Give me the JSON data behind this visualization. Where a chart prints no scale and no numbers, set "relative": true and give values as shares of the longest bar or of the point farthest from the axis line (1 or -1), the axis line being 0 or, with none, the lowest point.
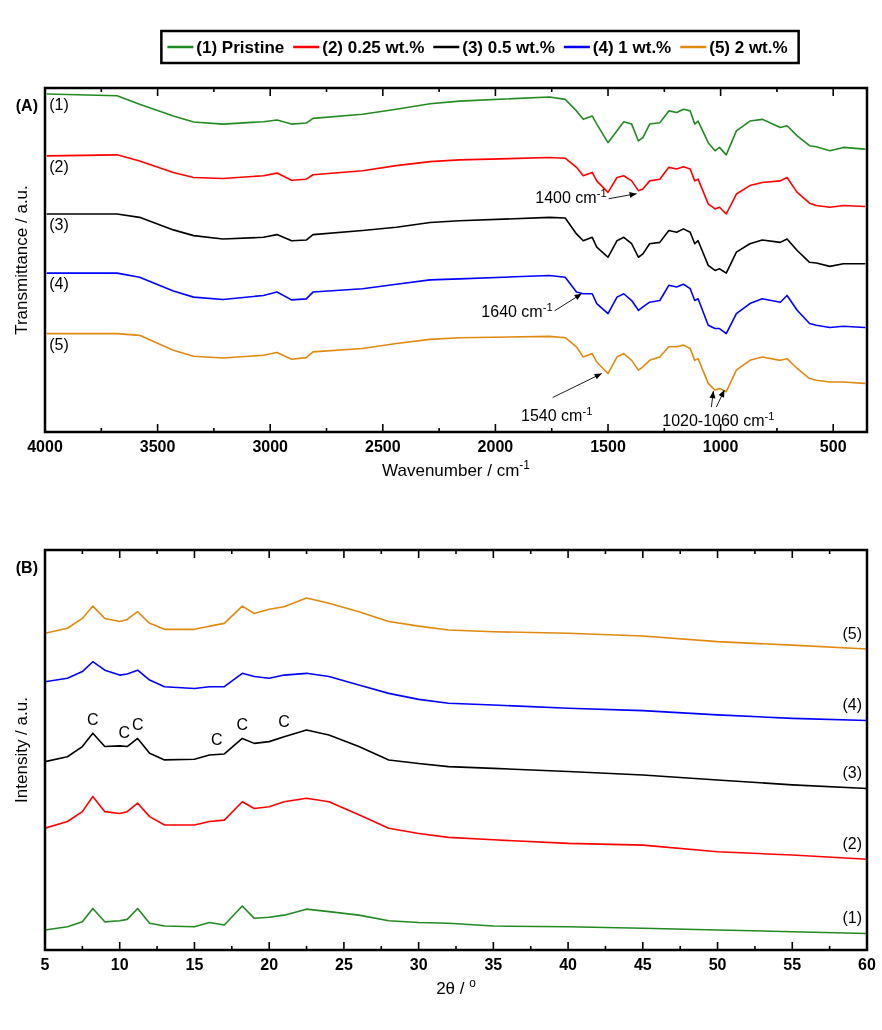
{
  "chart_data": [
    {
      "type": "line",
      "relative": true,
      "title": "(A)",
      "xlabel": "Wavenumber / cm$^{-1}$",
      "ylabel": "Transmittance / a.u.",
      "legend": "top",
      "tick_labels": "x",
      "xlim": [
        4000,
        350
      ],
      "xticks": [
        4000,
        {
          "value": 3750,
          "label": null
        },
        3500,
        {
          "value": 3250,
          "label": null
        },
        3000,
        {
          "value": 2750,
          "label": null
        },
        2500,
        {
          "value": 2250,
          "label": null
        },
        2000,
        {
          "value": 1750,
          "label": null
        },
        1500,
        {
          "value": 1250,
          "label": null
        },
        1000,
        {
          "value": 750,
          "label": null
        },
        500
      ],
      "x": [
        3990,
        3680,
        3580,
        3430,
        3340,
        3210,
        3030,
        2970,
        2905,
        2840,
        2810,
        2590,
        2440,
        2290,
        2160,
        1760,
        1690,
        1640,
        1610,
        1570,
        1550,
        1500,
        1460,
        1430,
        1395,
        1365,
        1345,
        1315,
        1270,
        1230,
        1195,
        1165,
        1135,
        1115,
        1100,
        1055,
        1025,
        1005,
        975,
        930,
        870,
        815,
        735,
        705,
        660,
        605,
        575,
        515,
        455,
        360
      ],
      "series": [
        {
          "name": "(1) Pristine",
          "color": "#218a21",
          "values": [
            1.0,
            0.995,
            0.97,
            0.935,
            0.917,
            0.911,
            0.918,
            0.923,
            0.911,
            0.914,
            0.928,
            0.94,
            0.955,
            0.971,
            0.979,
            0.991,
            0.984,
            0.95,
            0.925,
            0.935,
            0.911,
            0.856,
            0.891,
            0.918,
            0.911,
            0.861,
            0.871,
            0.911,
            0.915,
            0.95,
            0.945,
            0.955,
            0.95,
            0.911,
            0.92,
            0.856,
            0.832,
            0.842,
            0.82,
            0.891,
            0.92,
            0.925,
            0.901,
            0.906,
            0.876,
            0.847,
            0.844,
            0.832,
            0.842,
            0.837
          ]
        },
        {
          "name": "(2) 0.25 wt.%",
          "color": "#ff0000",
          "values": [
            0.817,
            0.82,
            0.802,
            0.768,
            0.753,
            0.75,
            0.758,
            0.766,
            0.745,
            0.748,
            0.761,
            0.773,
            0.788,
            0.8,
            0.805,
            0.812,
            0.81,
            0.783,
            0.758,
            0.768,
            0.743,
            0.709,
            0.753,
            0.758,
            0.743,
            0.714,
            0.719,
            0.743,
            0.748,
            0.783,
            0.778,
            0.785,
            0.778,
            0.743,
            0.748,
            0.675,
            0.66,
            0.665,
            0.645,
            0.704,
            0.729,
            0.738,
            0.743,
            0.753,
            0.709,
            0.677,
            0.67,
            0.665,
            0.67,
            0.667
          ]
        },
        {
          "name": "(3) 0.5 wt.%",
          "color": "#000000",
          "values": [
            0.645,
            0.645,
            0.635,
            0.598,
            0.581,
            0.571,
            0.576,
            0.584,
            0.566,
            0.568,
            0.584,
            0.596,
            0.606,
            0.62,
            0.625,
            0.635,
            0.633,
            0.586,
            0.566,
            0.576,
            0.547,
            0.517,
            0.566,
            0.576,
            0.557,
            0.517,
            0.527,
            0.557,
            0.561,
            0.596,
            0.591,
            0.601,
            0.591,
            0.557,
            0.566,
            0.493,
            0.478,
            0.483,
            0.47,
            0.532,
            0.557,
            0.568,
            0.561,
            0.571,
            0.537,
            0.502,
            0.5,
            0.49,
            0.498,
            0.498
          ]
        },
        {
          "name": "(4) 1 wt.%",
          "color": "#0000ff",
          "values": [
            0.47,
            0.47,
            0.458,
            0.417,
            0.399,
            0.392,
            0.404,
            0.414,
            0.391,
            0.394,
            0.414,
            0.424,
            0.437,
            0.45,
            0.453,
            0.463,
            0.458,
            0.414,
            0.409,
            0.409,
            0.38,
            0.35,
            0.399,
            0.409,
            0.389,
            0.36,
            0.37,
            0.384,
            0.389,
            0.434,
            0.429,
            0.437,
            0.424,
            0.389,
            0.394,
            0.316,
            0.306,
            0.306,
            0.291,
            0.35,
            0.38,
            0.394,
            0.384,
            0.404,
            0.36,
            0.321,
            0.316,
            0.309,
            0.313,
            0.309
          ]
        },
        {
          "name": "(5) 2 wt.%",
          "color": "#e0890f",
          "values": [
            0.291,
            0.291,
            0.286,
            0.242,
            0.224,
            0.219,
            0.227,
            0.235,
            0.215,
            0.22,
            0.237,
            0.247,
            0.262,
            0.274,
            0.279,
            0.283,
            0.279,
            0.252,
            0.222,
            0.232,
            0.207,
            0.173,
            0.222,
            0.232,
            0.212,
            0.183,
            0.193,
            0.212,
            0.222,
            0.252,
            0.252,
            0.257,
            0.247,
            0.212,
            0.217,
            0.144,
            0.124,
            0.129,
            0.119,
            0.183,
            0.212,
            0.222,
            0.212,
            0.217,
            0.188,
            0.158,
            0.153,
            0.148,
            0.148,
            0.144
          ]
        }
      ],
      "annotations": [
        {
          "text": "(1)",
          "x": 3990,
          "y": 1.0
        },
        {
          "text": "(2)",
          "x": 3990,
          "y": 0.817
        },
        {
          "text": "(3)",
          "x": 3990,
          "y": 0.645
        },
        {
          "text": "(4)",
          "x": 3990,
          "y": 0.47
        },
        {
          "text": "(5)",
          "x": 3990,
          "y": 0.291
        },
        {
          "text": "1400 cm$^{-1}$",
          "x": 1373,
          "y": 0.705
        },
        {
          "text": "1640 cm$^{-1}$",
          "x": 1617,
          "y": 0.409
        },
        {
          "text": "1540 cm$^{-1}$",
          "x": 1528,
          "y": 0.173
        },
        {
          "text": "1020-1060 cm$^{-1}$",
          "x": 1010,
          "y": 0.13
        }
      ]
    },
    {
      "type": "line",
      "relative": true,
      "title": "(B)",
      "xlabel": "2θ / $^{o}$",
      "ylabel": "Intensity / a.u.",
      "tick_labels": "x",
      "xlim": [
        5,
        60
      ],
      "xticks": [
        5,
        {
          "value": 7.5,
          "label": null
        },
        10,
        {
          "value": 12.5,
          "label": null
        },
        15,
        {
          "value": 17.5,
          "label": null
        },
        20,
        {
          "value": 22.5,
          "label": null
        },
        25,
        {
          "value": 27.5,
          "label": null
        },
        30,
        {
          "value": 32.5,
          "label": null
        },
        35,
        {
          "value": 37.5,
          "label": null
        },
        40,
        {
          "value": 42.5,
          "label": null
        },
        45,
        {
          "value": 47.5,
          "label": null
        },
        50,
        {
          "value": 52.5,
          "label": null
        },
        55,
        {
          "value": 57.5,
          "label": null
        },
        60
      ],
      "x": [
        5,
        6.5,
        7.5,
        8.2,
        9,
        10,
        10.5,
        11.2,
        12,
        13,
        15,
        16,
        17,
        18.2,
        19,
        20,
        21,
        22.5,
        24,
        26,
        28,
        30,
        32,
        35,
        40,
        45,
        50,
        55,
        60
      ],
      "series": [
        {
          "color": "#218a21",
          "values": [
            0.057,
            0.066,
            0.08,
            0.118,
            0.08,
            0.083,
            0.087,
            0.118,
            0.076,
            0.068,
            0.066,
            0.078,
            0.071,
            0.125,
            0.09,
            0.093,
            0.099,
            0.116,
            0.109,
            0.099,
            0.083,
            0.078,
            0.076,
            0.068,
            0.066,
            0.062,
            0.057,
            0.052,
            0.047
          ]
        },
        {
          "color": "#ff0000",
          "values": [
            0.346,
            0.365,
            0.393,
            0.436,
            0.393,
            0.388,
            0.393,
            0.417,
            0.379,
            0.355,
            0.355,
            0.365,
            0.369,
            0.421,
            0.402,
            0.407,
            0.421,
            0.431,
            0.421,
            0.384,
            0.346,
            0.331,
            0.32,
            0.313,
            0.303,
            0.298,
            0.279,
            0.27,
            0.258
          ]
        },
        {
          "color": "#000000",
          "values": [
            0.535,
            0.549,
            0.578,
            0.616,
            0.578,
            0.58,
            0.578,
            0.601,
            0.559,
            0.54,
            0.542,
            0.554,
            0.557,
            0.601,
            0.587,
            0.592,
            0.606,
            0.625,
            0.611,
            0.578,
            0.54,
            0.53,
            0.521,
            0.516,
            0.507,
            0.497,
            0.483,
            0.469,
            0.459
          ]
        },
        {
          "color": "#0000ff",
          "values": [
            0.762,
            0.772,
            0.791,
            0.819,
            0.795,
            0.781,
            0.784,
            0.795,
            0.767,
            0.748,
            0.743,
            0.748,
            0.748,
            0.786,
            0.777,
            0.772,
            0.781,
            0.786,
            0.777,
            0.753,
            0.729,
            0.712,
            0.701,
            0.696,
            0.687,
            0.68,
            0.668,
            0.658,
            0.652
          ]
        },
        {
          "color": "#e0890f",
          "values": [
            0.9,
            0.914,
            0.942,
            0.977,
            0.942,
            0.933,
            0.939,
            0.961,
            0.928,
            0.911,
            0.911,
            0.92,
            0.928,
            0.977,
            0.956,
            0.968,
            0.975,
            1.0,
            0.985,
            0.961,
            0.933,
            0.92,
            0.909,
            0.904,
            0.9,
            0.892,
            0.876,
            0.866,
            0.855
          ]
        }
      ],
      "annotations": [
        {
          "text": "(1)",
          "x": 60,
          "y": 0.047
        },
        {
          "text": "(2)",
          "x": 60,
          "y": 0.258
        },
        {
          "text": "(3)",
          "x": 60,
          "y": 0.459
        },
        {
          "text": "(4)",
          "x": 60,
          "y": 0.652
        },
        {
          "text": "(5)",
          "x": 60,
          "y": 0.855
        },
        {
          "text": "C",
          "x": 8.2,
          "y": 0.616
        },
        {
          "text": "C",
          "x": 10.3,
          "y": 0.58
        },
        {
          "text": "C",
          "x": 11.2,
          "y": 0.601
        },
        {
          "text": "C",
          "x": 16.5,
          "y": 0.56
        },
        {
          "text": "C",
          "x": 18.2,
          "y": 0.601
        },
        {
          "text": "C",
          "x": 21,
          "y": 0.61
        }
      ]
    }
  ]
}
